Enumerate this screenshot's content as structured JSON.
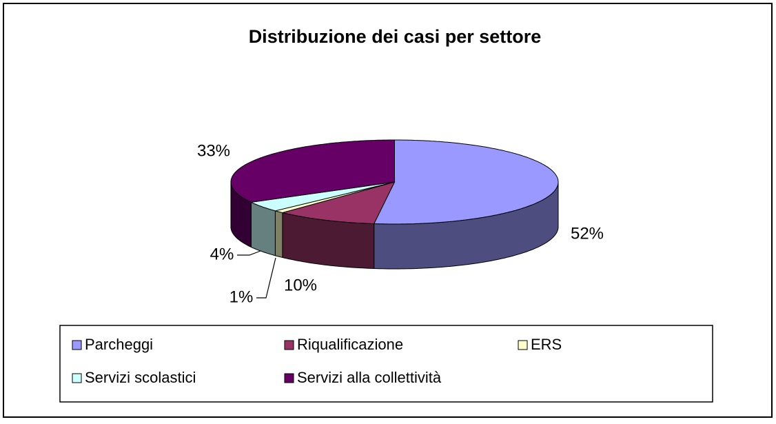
{
  "chart_data": {
    "type": "pie",
    "title": "Distribuzione dei casi per settore",
    "categories": [
      "Parcheggi",
      "Riqualificazione",
      "ERS",
      "Servizi scolastici",
      "Servizi alla collettività"
    ],
    "values": [
      52,
      10,
      1,
      4,
      33
    ],
    "value_labels": [
      "52%",
      "10%",
      "1%",
      "4%",
      "33%"
    ],
    "colors": [
      "#9999ff",
      "#993366",
      "#ffffcc",
      "#ccffff",
      "#660066"
    ]
  }
}
